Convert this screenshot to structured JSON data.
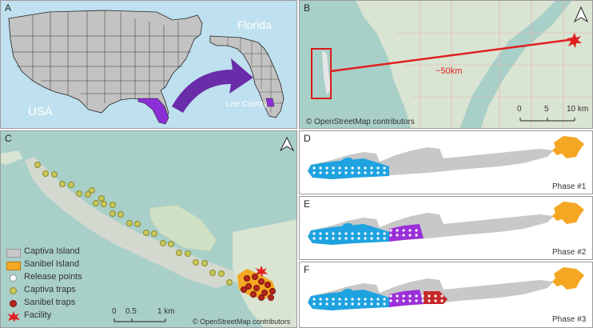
{
  "panels": {
    "a": {
      "label": "A",
      "country_label": "USA",
      "state_label": "Florida",
      "county_label": "Lee County",
      "colors": {
        "ocean": "#bfe0ee",
        "land": "#c3c3c3",
        "highlight": "#8c2fd6",
        "arrow": "#6a2ca8"
      }
    },
    "b": {
      "label": "B",
      "distance_label": "~50km",
      "scalebar_ticks": [
        "0",
        "5",
        "10 km"
      ],
      "attribution": "© OpenStreetMap contributors",
      "colors": {
        "line": "#e02020",
        "facility": "#e02020"
      }
    },
    "c": {
      "label": "C",
      "scalebar_ticks": [
        "0",
        "0.5",
        "1 km"
      ],
      "attribution": "© OpenStreetMap contributors",
      "legend": [
        {
          "label": "Captiva Island",
          "symbol": "gray-box",
          "color": "#c8c8c8"
        },
        {
          "label": "Sanibel Island",
          "symbol": "orange-box",
          "color": "#f5a623"
        },
        {
          "label": "Release points",
          "symbol": "white-dot",
          "color": "#ffffff"
        },
        {
          "label": "Captiva traps",
          "symbol": "yellow-dot",
          "color": "#c8c85a"
        },
        {
          "label": "Sanibel traps",
          "symbol": "red-dot",
          "color": "#b3261e"
        },
        {
          "label": "Facility",
          "symbol": "red-star",
          "color": "#e02020"
        }
      ]
    },
    "d": {
      "label": "D",
      "phase": "Phase #1"
    },
    "e": {
      "label": "E",
      "phase": "Phase #2"
    },
    "f": {
      "label": "F",
      "phase": "Phase #3"
    }
  },
  "colors": {
    "captiva": "#c8c8c8",
    "sanibel": "#f5a623",
    "release_zone": "#1fa3e0",
    "phase2_zone": "#9b30d9",
    "phase3_zone": "#c62828",
    "water": "#a9cfc9"
  }
}
